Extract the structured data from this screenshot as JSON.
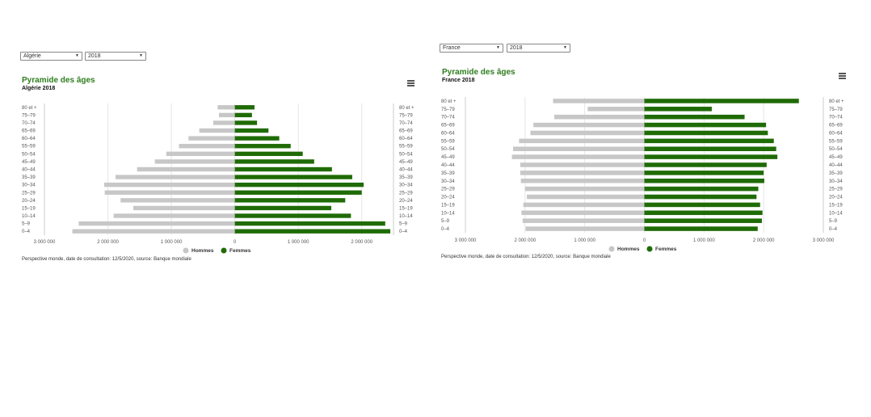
{
  "colors": {
    "hommes": "#c7c7c7",
    "femmes": "#1f6b06",
    "title": "#2e7d1e"
  },
  "panels": [
    {
      "country_select": "Algérie",
      "year_select": "2018",
      "title": "Pyramide des âges",
      "subtitle": "Algérie 2018",
      "menu_icon": "hamburger-menu-icon",
      "source": "Perspective monde, date de consultation: 12/5/2020, source: Banque mondiale",
      "legend": {
        "hommes": "Hommes",
        "femmes": "Femmes"
      }
    },
    {
      "country_select": "France",
      "year_select": "2018",
      "title": "Pyramide des âges",
      "subtitle": "France 2018",
      "menu_icon": "hamburger-menu-icon",
      "source": "Perspective monde, date de consultation: 12/5/2020, source: Banque mondiale",
      "legend": {
        "hommes": "Hommes",
        "femmes": "Femmes"
      }
    }
  ],
  "chart_data": [
    {
      "type": "bar",
      "orientation": "horizontal-pyramid",
      "categories": [
        "80 et +",
        "75-79",
        "70-74",
        "65-69",
        "60-64",
        "55-59",
        "50-54",
        "45-49",
        "40-44",
        "35-39",
        "30-34",
        "25-29",
        "20-24",
        "15-19",
        "10-14",
        "5-9",
        "0-4"
      ],
      "category_labels": [
        "80 et +",
        "75–79",
        "70–74",
        "65–69",
        "60–64",
        "55–59",
        "50–54",
        "45–49",
        "40–44",
        "35–39",
        "30–34",
        "25–29",
        "20–24",
        "15–19",
        "10–14",
        "5–9",
        "0–4"
      ],
      "series": [
        {
          "name": "Hommes",
          "side": "left",
          "values": [
            270000,
            250000,
            340000,
            560000,
            730000,
            880000,
            1080000,
            1260000,
            1540000,
            1880000,
            2060000,
            2050000,
            1800000,
            1600000,
            1910000,
            2460000,
            2560000
          ]
        },
        {
          "name": "Femmes",
          "side": "right",
          "values": [
            310000,
            270000,
            350000,
            530000,
            700000,
            880000,
            1070000,
            1250000,
            1530000,
            1850000,
            2030000,
            2000000,
            1740000,
            1520000,
            1830000,
            2370000,
            2450000
          ]
        }
      ],
      "xticks": [
        "3 000 000",
        "2 000 000",
        "1 000 000",
        "0",
        "1 000 000",
        "2 000 000"
      ],
      "xlim": [
        -3000000,
        2500000
      ],
      "grid": true,
      "legend_position": "bottom-center"
    },
    {
      "type": "bar",
      "orientation": "horizontal-pyramid",
      "categories": [
        "80 et +",
        "75-79",
        "70-74",
        "65-69",
        "60-64",
        "55-59",
        "50-54",
        "45-49",
        "40-44",
        "35-39",
        "30-34",
        "25-29",
        "20-24",
        "15-19",
        "10-14",
        "5-9",
        "0-4"
      ],
      "category_labels": [
        "80 et +",
        "75–79",
        "70–74",
        "65–69",
        "60–64",
        "55–59",
        "50–54",
        "45–49",
        "40–44",
        "35–39",
        "30–34",
        "25–29",
        "20–24",
        "15–19",
        "10–14",
        "5–9",
        "0–4"
      ],
      "series": [
        {
          "name": "Hommes",
          "side": "left",
          "values": [
            1530000,
            950000,
            1510000,
            1860000,
            1910000,
            2100000,
            2200000,
            2220000,
            2080000,
            2080000,
            2070000,
            2000000,
            1970000,
            2030000,
            2060000,
            2040000,
            1990000
          ]
        },
        {
          "name": "Femmes",
          "side": "right",
          "values": [
            2590000,
            1130000,
            1680000,
            2040000,
            2070000,
            2170000,
            2210000,
            2230000,
            2050000,
            2000000,
            2010000,
            1910000,
            1880000,
            1940000,
            1980000,
            1970000,
            1900000
          ]
        }
      ],
      "xticks": [
        "3 000 000",
        "2 000 000",
        "1 000 000",
        "0",
        "1 000 000",
        "2 000 000",
        "3 000 000"
      ],
      "xlim": [
        -3000000,
        3000000
      ],
      "grid": true,
      "legend_position": "bottom-center"
    }
  ]
}
